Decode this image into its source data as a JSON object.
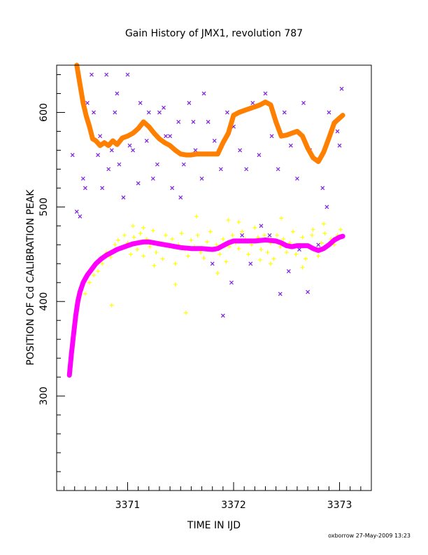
{
  "chart_data": {
    "type": "scatter",
    "title": "Gain History of JMX1, revolution 787",
    "xlabel": "TIME IN IJD",
    "ylabel": "POSITION OF Cd CALIBRATION PEAK",
    "xlim": [
      3370.33,
      3373.3
    ],
    "ylim": [
      200,
      650
    ],
    "xticks": [
      3371,
      3372,
      3373
    ],
    "xtick_labels": [
      "3371",
      "3372",
      "3373"
    ],
    "yticks": [
      300,
      400,
      500,
      600
    ],
    "ytick_labels": [
      "300",
      "400",
      "500",
      "600"
    ],
    "grid": false,
    "legend": "none",
    "credit": "oxborrow 27-May-2009 13:23",
    "colors": {
      "orange_line": "#ff7f00",
      "magenta_line": "#ff00ff",
      "yellow_points": "#ffff00",
      "purple_points": "#7b1fe0",
      "frame": "#000000"
    },
    "series": [
      {
        "marker": "line-plus",
        "color": "#ff7f00",
        "x": [
          3370.52,
          3370.55,
          3370.58,
          3370.61,
          3370.64,
          3370.67,
          3370.7,
          3370.74,
          3370.78,
          3370.82,
          3370.86,
          3370.9,
          3370.95,
          3371.0,
          3371.05,
          3371.1,
          3371.15,
          3371.2,
          3371.25,
          3371.3,
          3371.35,
          3371.4,
          3371.45,
          3371.5,
          3371.55,
          3371.6,
          3371.65,
          3371.7,
          3371.75,
          3371.8,
          3371.85,
          3371.9,
          3371.95,
          3372.0,
          3372.05,
          3372.1,
          3372.15,
          3372.2,
          3372.25,
          3372.3,
          3372.35,
          3372.4,
          3372.45,
          3372.5,
          3372.55,
          3372.6,
          3372.65,
          3372.7,
          3372.75,
          3372.8,
          3372.85,
          3372.9,
          3372.95,
          3373.0,
          3373.03
        ],
        "y": [
          650,
          630,
          610,
          596,
          585,
          572,
          570,
          565,
          568,
          565,
          570,
          566,
          573,
          575,
          578,
          583,
          590,
          585,
          578,
          572,
          568,
          565,
          560,
          556,
          555,
          555,
          556,
          556,
          556,
          556,
          556,
          568,
          578,
          597,
          600,
          602,
          604,
          606,
          608,
          611,
          608,
          590,
          575,
          576,
          578,
          580,
          575,
          562,
          552,
          548,
          558,
          573,
          589,
          594,
          597
        ]
      },
      {
        "marker": "line-plus",
        "color": "#ff00ff",
        "x": [
          3370.45,
          3370.47,
          3370.49,
          3370.51,
          3370.53,
          3370.55,
          3370.58,
          3370.62,
          3370.66,
          3370.7,
          3370.75,
          3370.8,
          3370.85,
          3370.9,
          3370.95,
          3371.0,
          3371.05,
          3371.1,
          3371.15,
          3371.2,
          3371.3,
          3371.4,
          3371.5,
          3371.6,
          3371.7,
          3371.8,
          3371.85,
          3371.9,
          3371.95,
          3372.0,
          3372.1,
          3372.2,
          3372.3,
          3372.4,
          3372.45,
          3372.5,
          3372.55,
          3372.6,
          3372.65,
          3372.7,
          3372.75,
          3372.8,
          3372.85,
          3372.9,
          3372.95,
          3373.0,
          3373.03
        ],
        "y": [
          322,
          345,
          365,
          385,
          400,
          410,
          420,
          428,
          434,
          440,
          445,
          449,
          452,
          455,
          457,
          459,
          461,
          462,
          463,
          463,
          461,
          459,
          457,
          456,
          456,
          455,
          456,
          459,
          462,
          464,
          464,
          464,
          465,
          464,
          462,
          459,
          458,
          459,
          459,
          459,
          456,
          454,
          456,
          460,
          465,
          468,
          469
        ]
      },
      {
        "marker": "plus",
        "color": "#ffff00",
        "x": [
          3370.6,
          3370.64,
          3370.68,
          3370.72,
          3370.76,
          3370.8,
          3370.84,
          3370.88,
          3370.91,
          3370.94,
          3370.97,
          3371.0,
          3371.03,
          3371.06,
          3371.09,
          3371.12,
          3371.15,
          3371.18,
          3371.21,
          3371.24,
          3371.27,
          3371.3,
          3371.33,
          3371.36,
          3371.39,
          3371.42,
          3371.45,
          3371.48,
          3371.51,
          3371.54,
          3371.57,
          3371.6,
          3371.63,
          3371.66,
          3371.69,
          3371.72,
          3371.75,
          3371.78,
          3371.81,
          3371.84,
          3371.87,
          3371.9,
          3371.93,
          3371.96,
          3371.99,
          3372.02,
          3372.05,
          3372.08,
          3372.11,
          3372.14,
          3372.17,
          3372.2,
          3372.23,
          3372.26,
          3372.29,
          3372.32,
          3372.35,
          3372.38,
          3372.41,
          3372.44,
          3372.47,
          3372.5,
          3372.53,
          3372.56,
          3372.59,
          3372.62,
          3372.65,
          3372.68,
          3372.71,
          3372.74,
          3372.77,
          3372.8,
          3372.83,
          3372.86,
          3372.89,
          3372.92,
          3372.95,
          3372.98,
          3373.01,
          3371.05,
          3371.25,
          3371.45,
          3371.65,
          3371.85,
          3372.05,
          3372.25,
          3372.45,
          3372.65,
          3372.85,
          3370.85,
          3371.15,
          3371.55,
          3371.95,
          3372.35,
          3372.75
        ],
        "y": [
          408,
          420,
          428,
          432,
          440,
          452,
          447,
          460,
          465,
          457,
          470,
          462,
          450,
          468,
          455,
          472,
          448,
          466,
          458,
          475,
          452,
          462,
          445,
          470,
          458,
          466,
          440,
          460,
          472,
          455,
          448,
          465,
          458,
          470,
          452,
          446,
          463,
          474,
          455,
          460,
          450,
          466,
          442,
          458,
          470,
          462,
          456,
          474,
          466,
          450,
          460,
          478,
          468,
          455,
          470,
          452,
          462,
          445,
          470,
          458,
          466,
          452,
          462,
          474,
          450,
          460,
          468,
          445,
          458,
          470,
          455,
          448,
          462,
          472,
          458,
          466,
          460,
          470,
          476,
          480,
          438,
          418,
          490,
          430,
          484,
          444,
          488,
          436,
          482,
          396,
          478,
          388,
          486,
          440,
          476
        ]
      },
      {
        "marker": "cross",
        "color": "#7b1fe0",
        "x": [
          3370.55,
          3370.58,
          3370.62,
          3370.66,
          3370.72,
          3370.76,
          3370.8,
          3370.85,
          3370.88,
          3370.92,
          3370.96,
          3371.0,
          3371.05,
          3371.12,
          3371.18,
          3371.24,
          3371.3,
          3371.36,
          3371.42,
          3371.48,
          3371.53,
          3371.58,
          3371.64,
          3371.7,
          3371.76,
          3371.82,
          3371.88,
          3371.94,
          3372.0,
          3372.06,
          3372.12,
          3372.18,
          3372.24,
          3372.3,
          3372.36,
          3372.42,
          3372.48,
          3372.54,
          3372.6,
          3372.66,
          3372.72,
          3372.78,
          3372.84,
          3372.9,
          3372.96,
          3373.02,
          3370.48,
          3370.52,
          3370.6,
          3370.68,
          3370.74,
          3370.82,
          3370.9,
          3371.02,
          3371.1,
          3371.2,
          3371.28,
          3371.34,
          3371.4,
          3371.5,
          3371.62,
          3371.72,
          3371.8,
          3371.9,
          3371.98,
          3372.08,
          3372.16,
          3372.26,
          3372.34,
          3372.44,
          3372.52,
          3372.62,
          3372.7,
          3372.8,
          3372.88,
          3372.98,
          3373.0
        ],
        "y": [
          490,
          530,
          610,
          640,
          555,
          520,
          640,
          560,
          600,
          545,
          510,
          640,
          560,
          610,
          570,
          530,
          600,
          575,
          520,
          590,
          545,
          610,
          560,
          530,
          590,
          570,
          540,
          600,
          585,
          560,
          540,
          610,
          555,
          620,
          575,
          540,
          600,
          565,
          530,
          610,
          560,
          550,
          520,
          600,
          590,
          625,
          555,
          495,
          520,
          600,
          575,
          540,
          620,
          565,
          525,
          600,
          545,
          605,
          575,
          510,
          590,
          620,
          440,
          385,
          420,
          470,
          440,
          480,
          470,
          408,
          432,
          455,
          410,
          460,
          500,
          580,
          565
        ]
      }
    ]
  }
}
